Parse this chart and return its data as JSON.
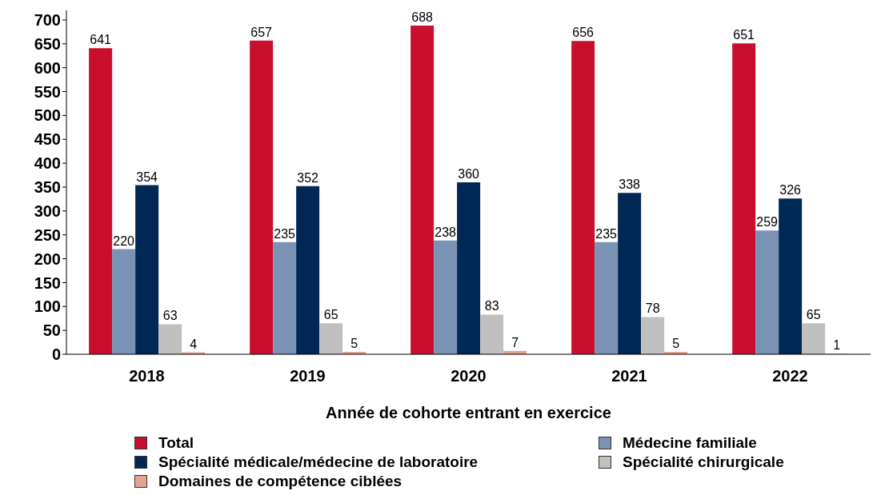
{
  "chart_data": {
    "type": "bar",
    "xlabel": "Année de cohorte entrant en exercice",
    "categories": [
      "2018",
      "2019",
      "2020",
      "2021",
      "2022"
    ],
    "series": [
      {
        "name": "Total",
        "color": "#c8102e",
        "values": [
          641,
          657,
          688,
          656,
          651
        ]
      },
      {
        "name": "Médecine familiale",
        "color": "#7a93b4",
        "values": [
          220,
          235,
          238,
          235,
          259
        ]
      },
      {
        "name": "Spécialité médicale/médecine de laboratoire",
        "color": "#002855",
        "values": [
          354,
          352,
          360,
          338,
          326
        ]
      },
      {
        "name": "Spécialité chirurgicale",
        "color": "#c0c0c0",
        "values": [
          63,
          65,
          83,
          78,
          65
        ]
      },
      {
        "name": "Domaines de compétence ciblées",
        "color": "#e8a090",
        "values": [
          4,
          5,
          7,
          5,
          1
        ]
      }
    ],
    "ylim": [
      0,
      720
    ],
    "yticks": [
      0,
      50,
      100,
      150,
      200,
      250,
      300,
      350,
      400,
      450,
      500,
      550,
      600,
      650,
      700
    ],
    "grid": false,
    "legend": "bottom",
    "data_labels": true
  }
}
